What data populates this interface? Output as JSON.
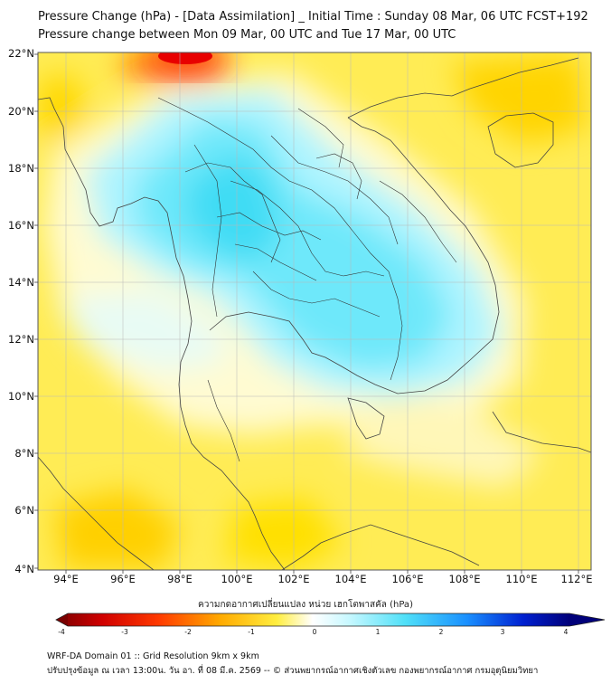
{
  "title": {
    "line1": "Pressure Change (hPa) - [Data Assimilation] _ Initial Time : Sunday 08 Mar, 06 UTC FCST+192",
    "line2": "Pressure change between Mon 09 Mar, 00 UTC and Tue 17 Mar, 00 UTC"
  },
  "axes": {
    "y_labels": [
      "22°N",
      "20°N",
      "18°N",
      "16°N",
      "14°N",
      "12°N",
      "10°N",
      "8°N",
      "6°N",
      "4°N"
    ],
    "x_labels": [
      "94°E",
      "96°E",
      "98°E",
      "100°E",
      "102°E",
      "104°E",
      "106°E",
      "108°E",
      "110°E",
      "112°E"
    ]
  },
  "colorbar": {
    "title": "ความกดอากาศเปลี่ยนแปลง หน่วย เฮกโตพาสคัล (hPa)",
    "ticks": [
      "-4",
      "-3",
      "-2",
      "-1",
      "0",
      "1",
      "2",
      "3",
      "4"
    ],
    "colors": [
      "#7a0000",
      "#e00000",
      "#ff5a00",
      "#ffb000",
      "#ffe800",
      "#ffffff",
      "#aef4ff",
      "#40dcf4",
      "#1a8cff",
      "#0018c8",
      "#000080"
    ]
  },
  "footer": {
    "line1": "WRF-DA Domain 01 :: Grid Resolution 9km x 9km",
    "line2": "ปรับปรุงข้อมูล ณ เวลา 13:00น. วัน อา. ที่ 08 มี.ค. 2569 -- © ส่วนพยากรณ์อากาศเชิงตัวเลข กองพยากรณ์อากาศ กรมอุตุนิยมวิทยา"
  }
}
